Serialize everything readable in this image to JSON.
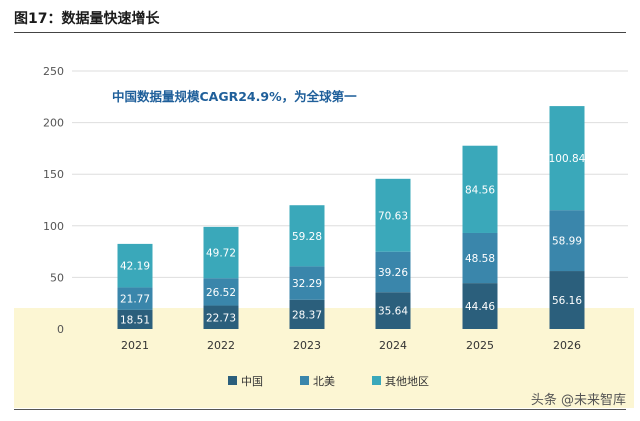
{
  "figure_title": "图17：数据量快速增长",
  "watermark": "头条 @未来智库",
  "chart_data": {
    "type": "bar",
    "stacked": true,
    "title": "中国数据量规模CAGR24.9%，为全球第一",
    "categories": [
      "2021",
      "2022",
      "2023",
      "2024",
      "2025",
      "2026"
    ],
    "series": [
      {
        "name": "中国",
        "color": "#2b5f7c",
        "values": [
          18.51,
          22.73,
          28.37,
          35.64,
          44.46,
          56.16
        ]
      },
      {
        "name": "北美",
        "color": "#3a86ab",
        "values": [
          21.77,
          26.52,
          32.29,
          39.26,
          48.58,
          58.99
        ]
      },
      {
        "name": "其他地区",
        "color": "#3aa8ba",
        "values": [
          42.19,
          49.72,
          59.28,
          70.63,
          84.56,
          100.84
        ]
      }
    ],
    "ylim": [
      0,
      250
    ],
    "yticks": [
      0,
      50,
      100,
      150,
      200,
      250
    ],
    "legend_position": "bottom",
    "grid": true,
    "title_color": "#1f5f9a"
  }
}
